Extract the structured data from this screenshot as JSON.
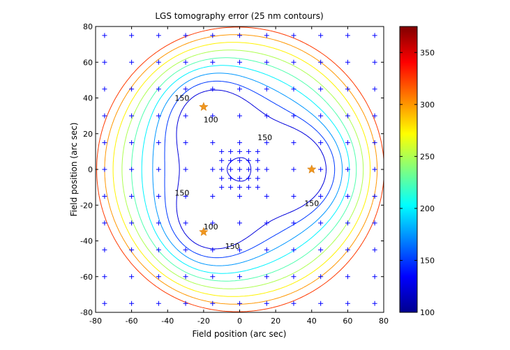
{
  "chart_data": {
    "type": "contour",
    "title": "LGS tomography error (25 nm contours)",
    "xlabel": "Field position (arc sec)",
    "ylabel": "Field position (arc sec)",
    "xlim": [
      -80,
      80
    ],
    "ylim": [
      -80,
      80
    ],
    "xticks": [
      -80,
      -60,
      -40,
      -20,
      0,
      20,
      40,
      60,
      80
    ],
    "yticks": [
      -80,
      -60,
      -40,
      -20,
      0,
      20,
      40,
      60,
      80
    ],
    "colorbar": {
      "range": [
        100,
        375
      ],
      "ticks": [
        100,
        150,
        200,
        250,
        300,
        350
      ],
      "colormap": "jet"
    },
    "contour_interval_nm": 25,
    "contour_levels": [
      125,
      150,
      175,
      200,
      225,
      250,
      275,
      300,
      325
    ],
    "contour_labels": [
      {
        "text": "150",
        "x": -32,
        "y": 40
      },
      {
        "text": "100",
        "x": -16,
        "y": 28
      },
      {
        "text": "150",
        "x": 14,
        "y": 18
      },
      {
        "text": "150",
        "x": -32,
        "y": -13
      },
      {
        "text": "100",
        "x": -16,
        "y": -32
      },
      {
        "text": "150",
        "x": 40,
        "y": -19
      },
      {
        "text": "150",
        "x": -4,
        "y": -43
      }
    ],
    "lgs_stars": [
      {
        "x": -20,
        "y": 35
      },
      {
        "x": 40,
        "y": 0
      },
      {
        "x": -20,
        "y": -35
      }
    ],
    "grid_axis_values": [
      -75,
      -60,
      -45,
      -30,
      -15,
      0,
      15,
      30,
      45,
      60,
      75
    ],
    "inner_grid_axis_values": [
      -10,
      -5,
      0,
      5,
      10
    ]
  }
}
